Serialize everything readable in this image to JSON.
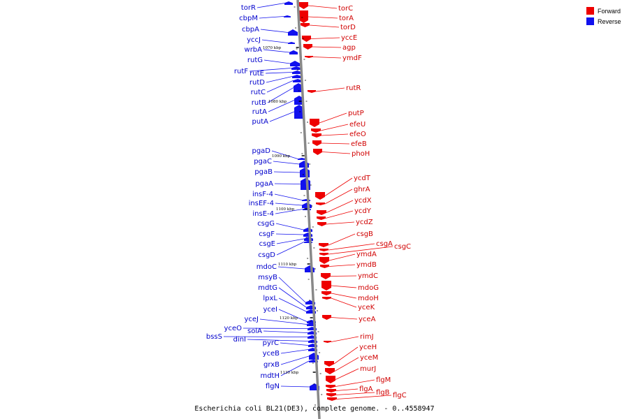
{
  "colors": {
    "forward": "#ee0000",
    "reverse": "#1111ee",
    "axis": "#888888",
    "text_forward": "#d00000",
    "text_reverse": "#0000cc"
  },
  "legend": {
    "forward": "Forward",
    "reverse": "Reverse"
  },
  "caption": "Escherichia coli BL21(DE3), complete genome. - 0..4558947",
  "kbp_labels": [
    "1070 kbp",
    "1080 kbp",
    "1090 kbp",
    "1100 kbp",
    "1110 kbp",
    "1120 kbp",
    "1130 kbp"
  ],
  "forward_genes": [
    "torC",
    "torA",
    "torD",
    "yccE",
    "agp",
    "ymdF",
    "rutR",
    "putP",
    "efeU",
    "efeO",
    "efeB",
    "phoH",
    "ycdT",
    "ghrA",
    "ycdX",
    "ycdY",
    "ycdZ",
    "csgB",
    "csgA",
    "csgC",
    "ymdA",
    "ymdB",
    "ymdC",
    "mdoG",
    "mdoH",
    "yceK",
    "yceA",
    "rimJ",
    "yceH",
    "yceM",
    "murJ",
    "flgM",
    "flgA",
    "flgB",
    "flgC"
  ],
  "reverse_genes": [
    "torR",
    "cbpM",
    "cbpA",
    "yccJ",
    "wrbA",
    "rutG",
    "rutF",
    "rutE",
    "rutD",
    "rutC",
    "rutB",
    "rutA",
    "putA",
    "pgaD",
    "pgaC",
    "pgaB",
    "pgaA",
    "insF-4",
    "insEF-4",
    "insE-4",
    "csgG",
    "csgF",
    "csgE",
    "csgD",
    "mdoC",
    "msyB",
    "mdtG",
    "lpxL",
    "yceI",
    "yceJ",
    "yceO",
    "solA",
    "bssS",
    "dinI",
    "pyrC",
    "yceB",
    "grxB",
    "mdtH",
    "flgN"
  ]
}
